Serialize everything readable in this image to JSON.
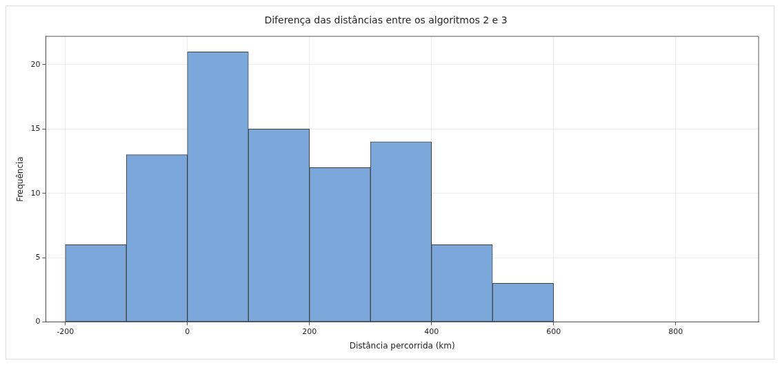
{
  "chart_data": {
    "type": "histogram",
    "title": "Diferença das distâncias entre os algoritmos 2 e 3",
    "xlabel": "Distância percorrida (km)",
    "ylabel": "Frequência",
    "bins": [
      -200,
      -100,
      0,
      100,
      200,
      300,
      400,
      500,
      600,
      700,
      800,
      900
    ],
    "values": [
      6,
      13,
      21,
      15,
      12,
      14,
      6,
      3,
      0,
      0,
      0
    ],
    "color": "#7ba7da",
    "xlim": [
      -232,
      936
    ],
    "xticks": [
      -200,
      0,
      200,
      400,
      600,
      800
    ],
    "ylim": [
      0,
      22.2
    ],
    "yticks": [
      0,
      5,
      10,
      15,
      20
    ],
    "grid": true,
    "legend": false
  }
}
